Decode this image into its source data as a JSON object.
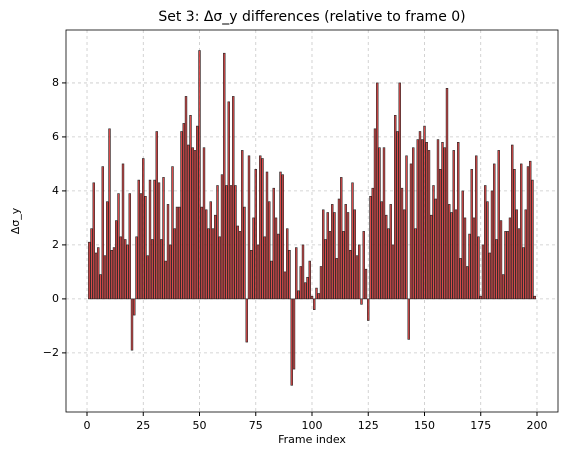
{
  "chart_data": {
    "type": "bar",
    "title": "Set 3: Δσ_y differences (relative to frame 0)",
    "xlabel": "Frame index",
    "ylabel": "Δσ_y",
    "x": [
      1,
      2,
      3,
      4,
      5,
      6,
      7,
      8,
      9,
      10,
      11,
      12,
      13,
      14,
      15,
      16,
      17,
      18,
      19,
      20,
      21,
      22,
      23,
      24,
      25,
      26,
      27,
      28,
      29,
      30,
      31,
      32,
      33,
      34,
      35,
      36,
      37,
      38,
      39,
      40,
      41,
      42,
      43,
      44,
      45,
      46,
      47,
      48,
      49,
      50,
      51,
      52,
      53,
      54,
      55,
      56,
      57,
      58,
      59,
      60,
      61,
      62,
      63,
      64,
      65,
      66,
      67,
      68,
      69,
      70,
      71,
      72,
      73,
      74,
      75,
      76,
      77,
      78,
      79,
      80,
      81,
      82,
      83,
      84,
      85,
      86,
      87,
      88,
      89,
      90,
      91,
      92,
      93,
      94,
      95,
      96,
      97,
      98,
      99,
      100,
      101,
      102,
      103,
      104,
      105,
      106,
      107,
      108,
      109,
      110,
      111,
      112,
      113,
      114,
      115,
      116,
      117,
      118,
      119,
      120,
      121,
      122,
      123,
      124,
      125,
      126,
      127,
      128,
      129,
      130,
      131,
      132,
      133,
      134,
      135,
      136,
      137,
      138,
      139,
      140,
      141,
      142,
      143,
      144,
      145,
      146,
      147,
      148,
      149,
      150,
      151,
      152,
      153,
      154,
      155,
      156,
      157,
      158,
      159,
      160,
      161,
      162,
      163,
      164,
      165,
      166,
      167,
      168,
      169,
      170,
      171,
      172,
      173,
      174,
      175,
      176,
      177,
      178,
      179,
      180,
      181,
      182,
      183,
      184,
      185,
      186,
      187,
      188,
      189,
      190,
      191,
      192,
      193,
      194,
      195,
      196,
      197,
      198,
      199
    ],
    "values": [
      2.1,
      2.6,
      4.3,
      1.7,
      1.9,
      0.9,
      4.9,
      1.6,
      3.6,
      6.3,
      1.8,
      1.9,
      2.9,
      3.9,
      2.3,
      5.0,
      2.2,
      2.0,
      3.9,
      -1.9,
      -0.6,
      2.3,
      4.4,
      3.9,
      5.2,
      3.8,
      1.6,
      4.4,
      2.2,
      4.4,
      6.2,
      4.3,
      2.2,
      4.5,
      1.4,
      3.5,
      2.0,
      4.9,
      2.6,
      3.4,
      3.4,
      6.2,
      6.5,
      7.5,
      5.7,
      6.8,
      5.6,
      5.5,
      6.4,
      9.2,
      3.4,
      5.6,
      3.3,
      2.6,
      3.6,
      2.6,
      3.1,
      4.2,
      2.3,
      4.6,
      9.1,
      4.2,
      7.3,
      4.2,
      7.5,
      4.2,
      2.7,
      2.5,
      5.5,
      3.4,
      -1.6,
      5.3,
      1.8,
      3.0,
      4.8,
      2.0,
      5.3,
      5.2,
      2.3,
      4.7,
      3.6,
      1.4,
      4.1,
      3.0,
      2.4,
      4.7,
      4.6,
      1.0,
      2.6,
      1.8,
      -3.2,
      -2.6,
      1.9,
      0.3,
      1.2,
      2.0,
      0.6,
      0.8,
      1.4,
      0.1,
      -0.4,
      0.4,
      0.2,
      1.2,
      3.3,
      2.2,
      3.2,
      2.5,
      3.5,
      3.2,
      1.5,
      3.7,
      4.5,
      2.5,
      3.5,
      3.2,
      1.8,
      4.3,
      3.3,
      1.6,
      2.0,
      -0.2,
      2.5,
      1.1,
      -0.8,
      3.8,
      4.1,
      6.3,
      8.0,
      5.6,
      3.6,
      5.6,
      3.1,
      2.6,
      3.5,
      2.0,
      6.8,
      6.2,
      8.0,
      4.1,
      3.3,
      5.3,
      -1.5,
      5.0,
      5.6,
      2.6,
      5.9,
      6.2,
      5.9,
      6.4,
      5.8,
      5.5,
      3.1,
      4.2,
      3.7,
      5.9,
      4.8,
      5.8,
      5.6,
      7.8,
      3.5,
      3.2,
      5.5,
      3.3,
      5.8,
      1.5,
      4.0,
      3.0,
      1.2,
      2.4,
      4.8,
      3.0,
      5.3,
      2.3,
      0.1,
      2.0,
      4.2,
      3.6,
      1.7,
      4.0,
      5.0,
      2.2,
      5.5,
      2.9,
      0.9,
      2.5,
      2.5,
      3.0,
      5.7,
      4.8,
      3.3,
      2.6,
      5.0,
      1.9,
      3.3,
      4.9,
      5.1,
      4.4,
      0.1
    ],
    "color": "#d42a2a",
    "edgecolor": "#222222",
    "bar_width": 0.8,
    "xlim": [
      -9.34,
      209.34
    ],
    "xticks": [
      0,
      25,
      50,
      75,
      100,
      125,
      150,
      175,
      200
    ],
    "ylim": [
      -4.19,
      9.96
    ],
    "yticks": [
      {
        "value": -2,
        "label": "−2"
      },
      0,
      2,
      4,
      6,
      8
    ],
    "grid": true
  }
}
